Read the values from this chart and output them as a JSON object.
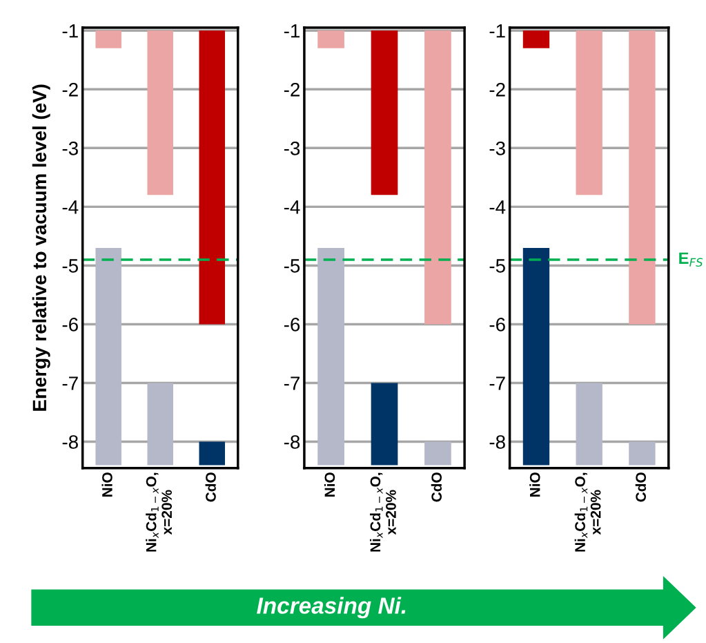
{
  "chart_data": [
    {
      "type": "bar",
      "categories": [
        "NiO",
        "Ni$_{x}$Cd$_{1−x}$O,\nx=20%",
        "CdO"
      ],
      "ylabel": "Energy relative to vacuum level (eV)",
      "ylim": [
        -8.45,
        -0.95
      ],
      "yticks": [
        -8,
        -7,
        -6,
        -5,
        -4,
        -3,
        -2,
        -1
      ],
      "grid": "y",
      "series": [
        {
          "base": [
            -1.3,
            -3.8,
            -6.0
          ],
          "values": [
            0.3,
            2.8,
            5.0
          ],
          "colors": [
            "#eca5a5",
            "#eca5a5",
            "#c00000"
          ]
        },
        {
          "base": [
            -8.4,
            -8.4,
            -8.4
          ],
          "values": [
            3.7,
            1.4,
            0.4
          ],
          "colors": [
            "#b4b8c8",
            "#b4b8c8",
            "#003366"
          ]
        }
      ],
      "ref_lines": [
        {
          "axis": "y",
          "value": -4.9,
          "color": "#00b050",
          "line_style": "dashed"
        }
      ]
    },
    {
      "type": "bar",
      "categories": [
        "NiO",
        "Ni$_{x}$Cd$_{1−x}$O,\nx=20%",
        "CdO"
      ],
      "ylim": [
        -8.45,
        -0.95
      ],
      "yticks": [
        -8,
        -7,
        -6,
        -5,
        -4,
        -3,
        -2,
        -1
      ],
      "grid": "y",
      "series": [
        {
          "base": [
            -1.3,
            -3.8,
            -6.0
          ],
          "values": [
            0.3,
            2.8,
            5.0
          ],
          "colors": [
            "#eca5a5",
            "#c00000",
            "#eca5a5"
          ]
        },
        {
          "base": [
            -8.4,
            -8.4,
            -8.4
          ],
          "values": [
            3.7,
            1.4,
            0.4
          ],
          "colors": [
            "#b4b8c8",
            "#003366",
            "#b4b8c8"
          ]
        }
      ],
      "ref_lines": [
        {
          "axis": "y",
          "value": -4.9,
          "color": "#00b050",
          "line_style": "dashed"
        }
      ]
    },
    {
      "type": "bar",
      "categories": [
        "NiO",
        "Ni$_{x}$Cd$_{1−x}$O,\nx=20%",
        "CdO"
      ],
      "ylim": [
        -8.45,
        -0.95
      ],
      "yticks": [
        -8,
        -7,
        -6,
        -5,
        -4,
        -3,
        -2,
        -1
      ],
      "grid": "y",
      "series": [
        {
          "base": [
            -1.3,
            -3.8,
            -6.0
          ],
          "values": [
            0.3,
            2.8,
            5.0
          ],
          "colors": [
            "#c00000",
            "#eca5a5",
            "#eca5a5"
          ]
        },
        {
          "base": [
            -8.4,
            -8.4,
            -8.4
          ],
          "values": [
            3.7,
            1.4,
            0.4
          ],
          "colors": [
            "#003366",
            "#b4b8c8",
            "#b4b8c8"
          ]
        }
      ],
      "ref_lines": [
        {
          "axis": "y",
          "value": -4.9,
          "label": "E$_{FS}$",
          "color": "#00b050",
          "line_style": "dashed"
        }
      ],
      "annotations": [
        "Increasing Ni."
      ]
    }
  ]
}
